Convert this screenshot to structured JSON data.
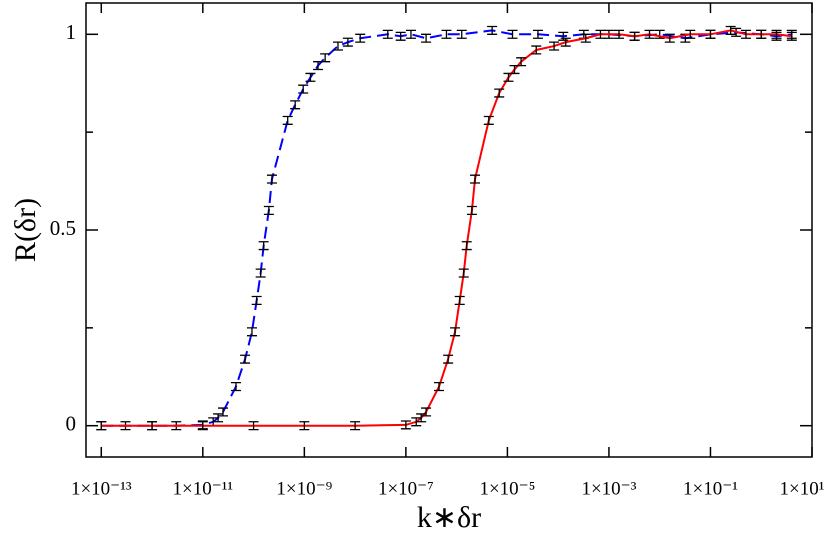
{
  "chart_data": {
    "type": "line",
    "x_label": "k∗δr",
    "y_label": "R(δr)",
    "xscale": "log",
    "xlim": [
      5e-14,
      10
    ],
    "ylim": [
      -0.08,
      1.08
    ],
    "xticks": [
      {
        "value": 1e-13,
        "label": "1×10⁻¹³"
      },
      {
        "value": 1e-11,
        "label": "1×10⁻¹¹"
      },
      {
        "value": 1e-09,
        "label": "1×10⁻⁹"
      },
      {
        "value": 1e-07,
        "label": "1×10⁻⁷"
      },
      {
        "value": 1e-05,
        "label": "1×10⁻⁵"
      },
      {
        "value": 0.001,
        "label": "1×10⁻³"
      },
      {
        "value": 0.1,
        "label": "1×10⁻¹"
      },
      {
        "value": 10,
        "label": "1×10¹"
      }
    ],
    "yticks": [
      0,
      0.5,
      1
    ],
    "yminor": [
      0.25,
      0.75
    ],
    "series": [
      {
        "color": "#0000ff",
        "dash": true,
        "error": 0.01,
        "x": [
          1e-13,
          3e-13,
          1e-12,
          3e-12,
          1e-11,
          1.6e-11,
          2e-11,
          2.5e-11,
          4.5e-11,
          6.8e-11,
          9.3e-11,
          1.15e-10,
          1.38e-10,
          1.58e-10,
          2e-10,
          2.3e-10,
          4.7e-10,
          6.6e-10,
          9.5e-10,
          1.32e-09,
          1.86e-09,
          2.57e-09,
          4.6e-09,
          7.2e-09,
          1.26e-08,
          4.4e-08,
          7.9e-08,
          1.26e-07,
          2.5e-07,
          6.3e-07,
          1.26e-06,
          5e-06,
          1.26e-05,
          4e-05,
          0.000126,
          0.00032,
          0.001,
          0.0032,
          0.01,
          0.032,
          0.1,
          0.32,
          1,
          2,
          4
        ],
        "values": [
          0,
          0,
          0,
          0,
          0.002,
          0.01,
          0.02,
          0.035,
          0.1,
          0.17,
          0.24,
          0.32,
          0.39,
          0.46,
          0.55,
          0.63,
          0.78,
          0.82,
          0.86,
          0.89,
          0.92,
          0.94,
          0.97,
          0.98,
          0.99,
          1.0,
          0.995,
          1.0,
          0.99,
          1.0,
          1.0,
          1.01,
          1.0,
          1.0,
          0.995,
          1.0,
          1.0,
          0.995,
          1.0,
          0.99,
          1.0,
          1.005,
          1.0,
          0.995,
          1.0
        ]
      },
      {
        "color": "#ff0000",
        "dash": false,
        "error": 0.01,
        "x": [
          1e-13,
          1e-12,
          1e-11,
          1e-10,
          1e-09,
          1e-08,
          1e-07,
          1.6e-07,
          2e-07,
          2.5e-07,
          4.5e-07,
          6.8e-07,
          9.3e-07,
          1.15e-06,
          1.38e-06,
          1.58e-06,
          2e-06,
          2.3e-06,
          4.3e-06,
          6.9e-06,
          1.05e-05,
          1.38e-05,
          1.86e-05,
          3.7e-05,
          8.3e-05,
          0.000141,
          0.00035,
          0.00068,
          0.00158,
          0.0032,
          0.0063,
          0.0158,
          0.04,
          0.1,
          0.25,
          0.5,
          1,
          2,
          4
        ],
        "values": [
          0,
          0,
          0,
          0,
          0,
          0,
          0.002,
          0.01,
          0.02,
          0.035,
          0.1,
          0.17,
          0.24,
          0.32,
          0.39,
          0.46,
          0.55,
          0.63,
          0.78,
          0.85,
          0.89,
          0.91,
          0.93,
          0.96,
          0.97,
          0.98,
          0.99,
          1.0,
          1.0,
          0.995,
          1.0,
          0.99,
          1.0,
          1.0,
          1.01,
          1.0,
          1.0,
          1.0,
          0.995
        ]
      }
    ]
  }
}
